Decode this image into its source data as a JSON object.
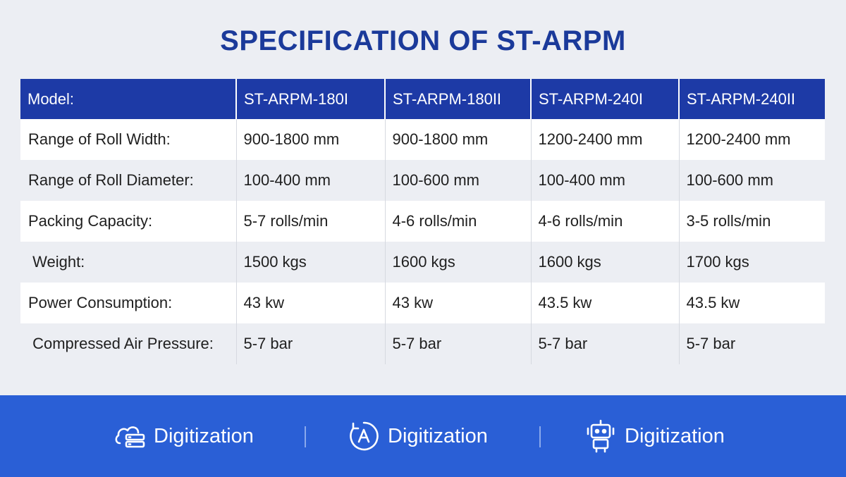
{
  "title": "SPECIFICATION OF ST-ARPM",
  "table": {
    "headers": [
      "Model:",
      "ST-ARPM-180I",
      "ST-ARPM-180II",
      "ST-ARPM-240I",
      "ST-ARPM-240II"
    ],
    "rows": [
      [
        "Range of Roll Width:",
        "900-1800 mm",
        "900-1800 mm",
        "1200-2400 mm",
        "1200-2400 mm"
      ],
      [
        "Range of Roll Diameter:",
        "100-400 mm",
        "100-600 mm",
        "100-400 mm",
        "100-600 mm"
      ],
      [
        "Packing Capacity:",
        "5-7 rolls/min",
        "4-6 rolls/min",
        "4-6 rolls/min",
        "3-5 rolls/min"
      ],
      [
        " Weight:",
        "1500 kgs",
        "1600 kgs",
        "1600 kgs",
        "1700 kgs"
      ],
      [
        "Power Consumption:",
        "43 kw",
        "43 kw",
        "43.5 kw",
        "43.5 kw"
      ],
      [
        " Compressed Air Pressure:",
        "5-7 bar",
        "5-7 bar",
        "5-7 bar",
        "5-7 bar"
      ]
    ]
  },
  "footer": {
    "items": [
      {
        "icon": "cloud-server-icon",
        "label": "Digitization"
      },
      {
        "icon": "automation-a-icon",
        "label": "Digitization"
      },
      {
        "icon": "robot-icon",
        "label": "Digitization"
      }
    ]
  },
  "colors": {
    "title": "#1b3a9a",
    "header_bg": "#1d3aa6",
    "footer_bg": "#2a5fd6",
    "page_bg": "#eceef3"
  }
}
